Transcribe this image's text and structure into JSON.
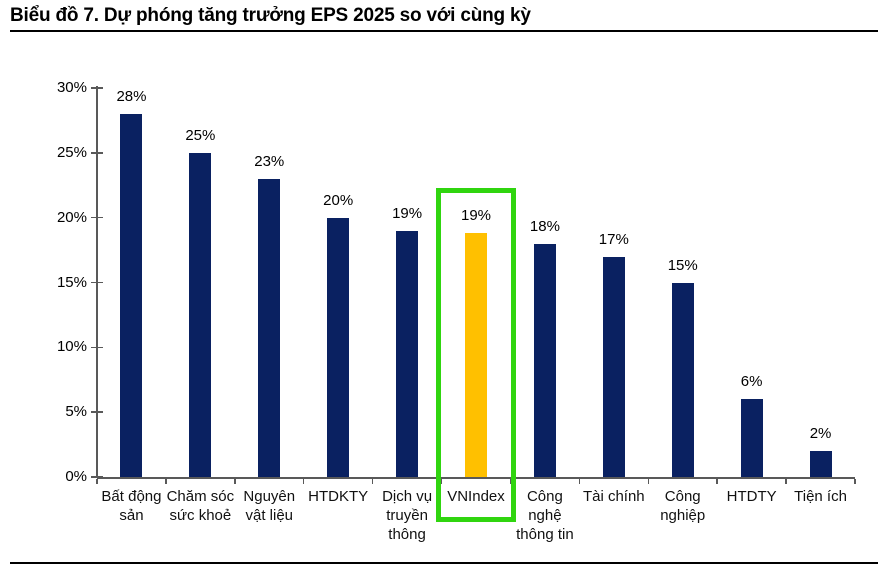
{
  "title": "Biểu đồ 7. Dự phóng tăng trưởng EPS 2025 so với cùng kỳ",
  "chart_data": {
    "type": "bar",
    "title": "Biểu đồ 7. Dự phóng tăng trưởng EPS 2025 so với cùng kỳ",
    "categories": [
      "Bất động sản",
      "Chăm sóc sức khoẻ",
      "Nguyên vật liệu",
      "HTDKTY",
      "Dịch vụ truyền thông",
      "VNIndex",
      "Công nghệ thông tin",
      "Tài chính",
      "Công nghiệp",
      "HTDTY",
      "Tiện ích"
    ],
    "category_display": [
      "Bất động\nsản",
      "Chăm sóc\nsức khoẻ",
      "Nguyên\nvật liệu",
      "HTDKTY",
      "Dịch vụ\ntruyền\nthông",
      "VNIndex",
      "Công\nnghệ\nthông tin",
      "Tài chính",
      "Công\nnghiệp",
      "HTDTY",
      "Tiện ích"
    ],
    "values": [
      28,
      25,
      23,
      20,
      19,
      19,
      18,
      17,
      15,
      6,
      2
    ],
    "bar_labels": [
      "28%",
      "25%",
      "23%",
      "20%",
      "19%",
      "19%",
      "18%",
      "17%",
      "15%",
      "6%",
      "2%"
    ],
    "highlight_index": 5,
    "highlight_bar_rendered_value": 18.8,
    "ylim": [
      0,
      30
    ],
    "ytick_step": 5,
    "ytick_labels": [
      "0%",
      "5%",
      "10%",
      "15%",
      "20%",
      "25%",
      "30%"
    ],
    "grid": false,
    "legend": "none",
    "colors": {
      "bar": "#0a2161",
      "highlight_bar": "#ffc000",
      "highlight_box": "#30d50f",
      "axis": "#595959",
      "text": "#000000"
    }
  }
}
